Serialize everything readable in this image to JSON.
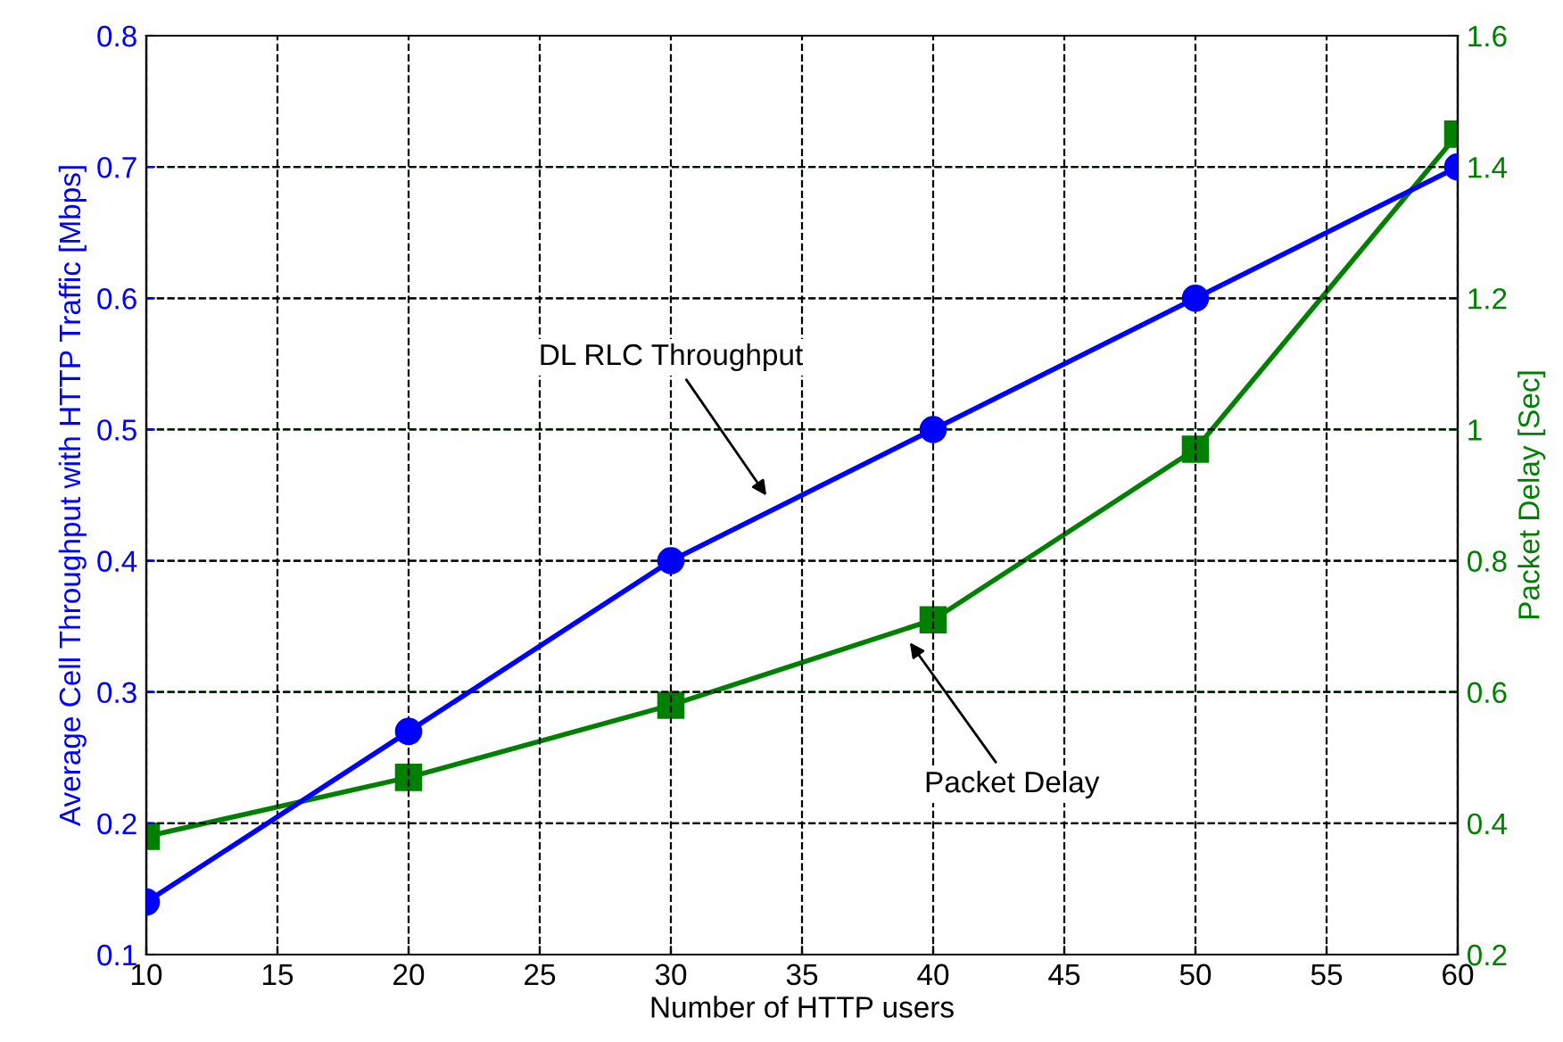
{
  "chart_data": {
    "type": "line",
    "xlabel": "Number of HTTP users",
    "ylabel": "Average Cell Throughput with HTTP Traffic [Mbps]",
    "y2label": "Packet Delay [Sec]",
    "x": [
      10,
      20,
      30,
      40,
      50,
      60
    ],
    "series": [
      {
        "color": "#0000ff",
        "marker": "circle",
        "values": [
          0.14,
          0.27,
          0.4,
          0.5,
          0.6,
          0.7
        ]
      },
      {
        "color": "#008000",
        "marker": "square",
        "axis": "y2",
        "values": [
          0.38,
          0.47,
          0.58,
          0.71,
          0.97,
          1.45
        ]
      }
    ],
    "xlim": [
      10,
      60
    ],
    "xticks": [
      10,
      15,
      20,
      25,
      30,
      35,
      40,
      45,
      50,
      55,
      60
    ],
    "ylim": [
      0.1,
      0.8
    ],
    "yticks": [
      0.1,
      0.2,
      0.3,
      0.4,
      0.5,
      0.6,
      0.7,
      0.8
    ],
    "y2lim": [
      0.2,
      1.6
    ],
    "y2ticks": [
      0.2,
      0.4,
      0.6,
      0.8,
      1,
      1.2,
      1.4,
      1.6
    ],
    "annotations": [
      "DL RLC Throughput",
      "Packet Delay"
    ],
    "grid": true,
    "line_style": "solid"
  }
}
